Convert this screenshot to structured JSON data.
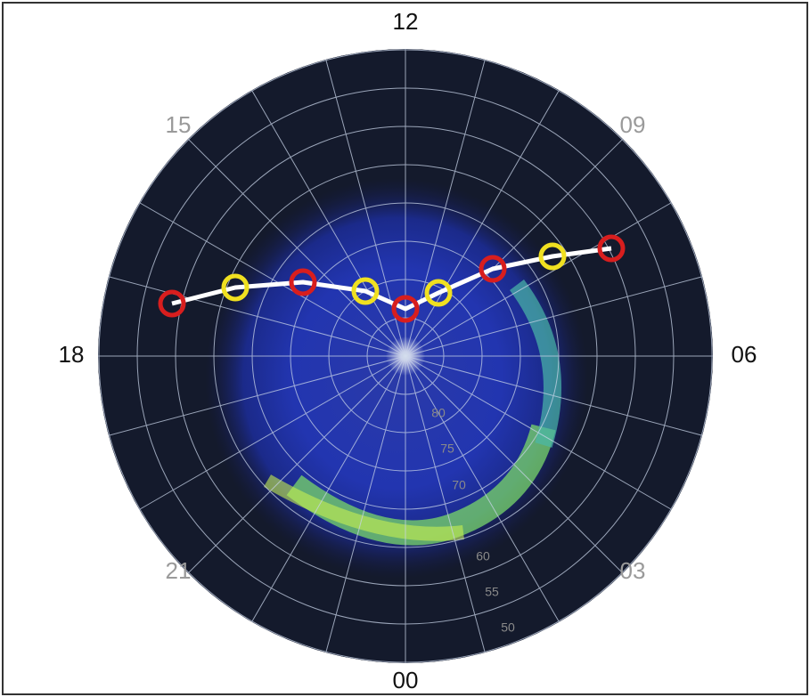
{
  "hour_labels": {
    "top": "12",
    "right": "06",
    "bottom": "00",
    "left": "18"
  },
  "inner_hour_labels": [
    "15",
    "09",
    "21",
    "03"
  ],
  "latitude_labels": [
    "80",
    "75",
    "70",
    "60",
    "55",
    "50"
  ]
}
